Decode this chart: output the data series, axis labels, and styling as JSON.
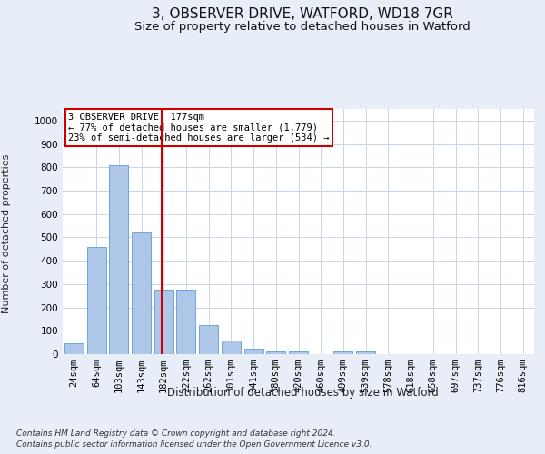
{
  "title_line1": "3, OBSERVER DRIVE, WATFORD, WD18 7GR",
  "title_line2": "Size of property relative to detached houses in Watford",
  "xlabel": "Distribution of detached houses by size in Watford",
  "ylabel": "Number of detached properties",
  "footnote1": "Contains HM Land Registry data © Crown copyright and database right 2024.",
  "footnote2": "Contains public sector information licensed under the Open Government Licence v3.0.",
  "categories": [
    "24sqm",
    "64sqm",
    "103sqm",
    "143sqm",
    "182sqm",
    "222sqm",
    "262sqm",
    "301sqm",
    "341sqm",
    "380sqm",
    "420sqm",
    "460sqm",
    "499sqm",
    "539sqm",
    "578sqm",
    "618sqm",
    "658sqm",
    "697sqm",
    "737sqm",
    "776sqm",
    "816sqm"
  ],
  "values": [
    47,
    457,
    810,
    520,
    275,
    275,
    125,
    60,
    22,
    12,
    12,
    0,
    12,
    12,
    0,
    0,
    0,
    0,
    0,
    0,
    0
  ],
  "bar_color": "#aec6e8",
  "bar_edge_color": "#5a9fd4",
  "vline_color": "#cc0000",
  "annotation_text": "3 OBSERVER DRIVE: 177sqm\n← 77% of detached houses are smaller (1,779)\n23% of semi-detached houses are larger (534) →",
  "annotation_box_color": "#cc0000",
  "annotation_text_color": "#000000",
  "ylim": [
    0,
    1050
  ],
  "yticks": [
    0,
    100,
    200,
    300,
    400,
    500,
    600,
    700,
    800,
    900,
    1000
  ],
  "bg_color": "#e8eef7",
  "plot_bg_color": "#ffffff",
  "grid_color": "#c8d4e8",
  "title_fontsize": 11,
  "subtitle_fontsize": 9.5,
  "footnote_fontsize": 6.5,
  "xlabel_fontsize": 8.5,
  "ylabel_fontsize": 8,
  "tick_fontsize": 7.5,
  "annot_fontsize": 7.5
}
